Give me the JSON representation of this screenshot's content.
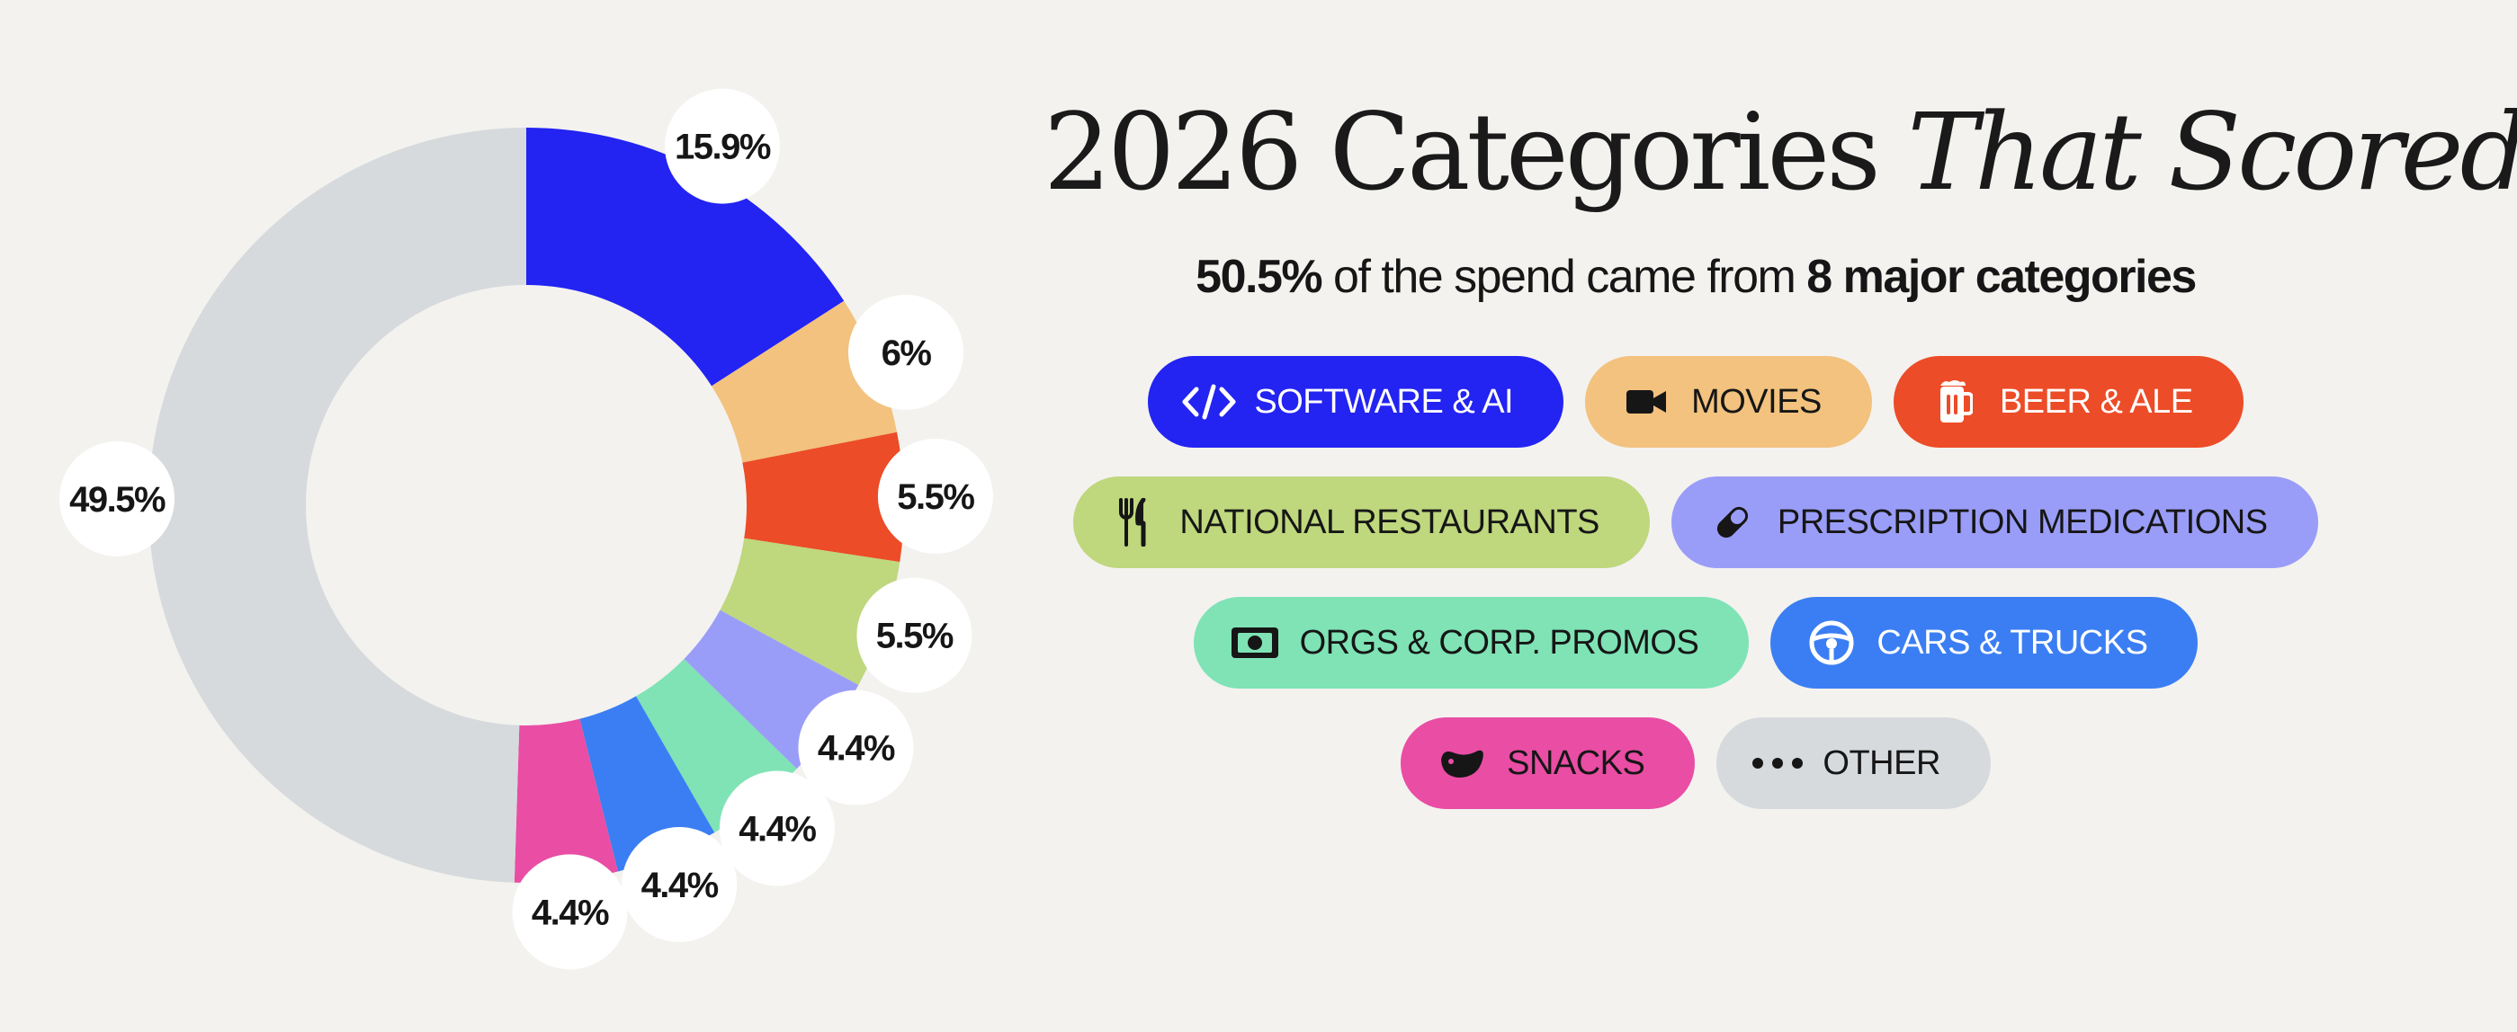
{
  "title": {
    "part1": "2026 Categories ",
    "part2": "That Scored"
  },
  "subtitle": {
    "pct": "50.5%",
    "middle": " of the spend came from ",
    "count": "8 major categories"
  },
  "chart_data": {
    "type": "pie",
    "donut": true,
    "categories": [
      "Software & AI",
      "Movies",
      "Beer & Ale",
      "National Restaurants",
      "Prescription Medications",
      "Orgs & Corp. Promos",
      "Cars & Trucks",
      "Snacks",
      "Other"
    ],
    "values": [
      15.9,
      6,
      5.5,
      5.5,
      4.4,
      4.4,
      4.4,
      4.4,
      49.5
    ],
    "labels": [
      "15.9%",
      "6%",
      "5.5%",
      "5.5%",
      "4.4%",
      "4.4%",
      "4.4%",
      "4.4%",
      "49.5%"
    ],
    "colors": [
      "#2323f2",
      "#f2c27e",
      "#ec4c27",
      "#bfd77d",
      "#9a9df7",
      "#7fe3b5",
      "#3b7ef3",
      "#e94da4",
      "#d6dadd"
    ]
  },
  "legend": [
    {
      "label": "SOFTWARE & AI",
      "icon": "code-icon",
      "bg": "#2323f2",
      "fg": "#ffffff"
    },
    {
      "label": "MOVIES",
      "icon": "video-camera-icon",
      "bg": "#f2c27e",
      "fg": "#161616"
    },
    {
      "label": "BEER & ALE",
      "icon": "beer-mug-icon",
      "bg": "#ec4c27",
      "fg": "#ffffff"
    },
    {
      "label": "NATIONAL RESTAURANTS",
      "icon": "fork-knife-icon",
      "bg": "#bfd77d",
      "fg": "#161616"
    },
    {
      "label": "PRESCRIPTION MEDICATIONS",
      "icon": "pill-icon",
      "bg": "#9a9df7",
      "fg": "#161616"
    },
    {
      "label": "ORGS & CORP. PROMOS",
      "icon": "money-bill-icon",
      "bg": "#7fe3b5",
      "fg": "#161616"
    },
    {
      "label": "CARS & TRUCKS",
      "icon": "steering-wheel-icon",
      "bg": "#3b7ef3",
      "fg": "#ffffff"
    },
    {
      "label": "SNACKS",
      "icon": "snack-icon",
      "bg": "#e94da4",
      "fg": "#161616"
    },
    {
      "label": "OTHER",
      "icon": "dots-icon",
      "bg": "#d6dadd",
      "fg": "#161616"
    }
  ]
}
